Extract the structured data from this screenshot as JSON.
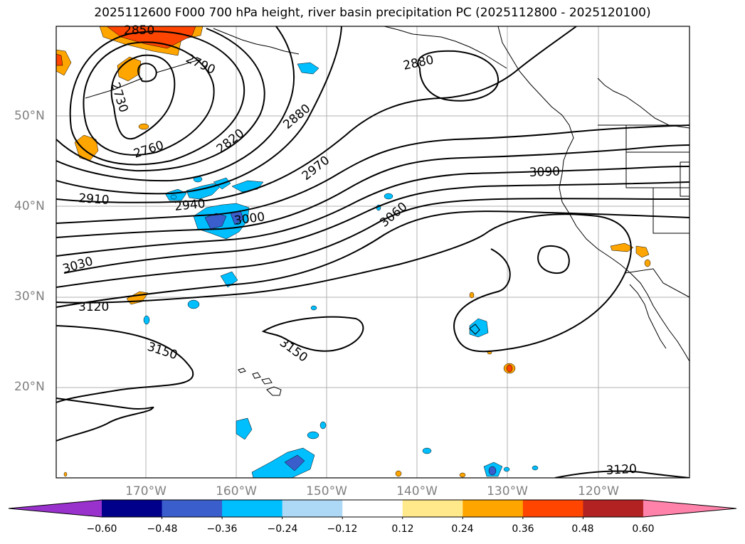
{
  "title": "2025112600 F000 700 hPa height, river basin precipitation PC (2025112800 - 2025120100)",
  "latitude_labels": [
    "50°N",
    "40°N",
    "30°N",
    "20°N"
  ],
  "longitude_labels": [
    "170°W",
    "160°W",
    "150°W",
    "140°W",
    "130°W",
    "120°W"
  ],
  "contour_labels": [
    "2850",
    "2790",
    "2730",
    "2760",
    "2820",
    "2880",
    "2880",
    "2970",
    "2910",
    "2940",
    "3000",
    "3030",
    "3060",
    "3090",
    "3120",
    "3150",
    "3150",
    "3120"
  ],
  "colorbar": {
    "tick_labels": [
      "−0.60",
      "−0.48",
      "−0.36",
      "−0.24",
      "−0.12",
      "0.12",
      "0.24",
      "0.36",
      "0.48",
      "0.60"
    ],
    "colors": [
      "#9932CC",
      "#00008B",
      "#3A5FCD",
      "#00BFFF",
      "#ADD8F6",
      "#FFFFFF",
      "#FFE98A",
      "#FFA500",
      "#FF4500",
      "#B22222",
      "#FF82AB"
    ]
  }
}
